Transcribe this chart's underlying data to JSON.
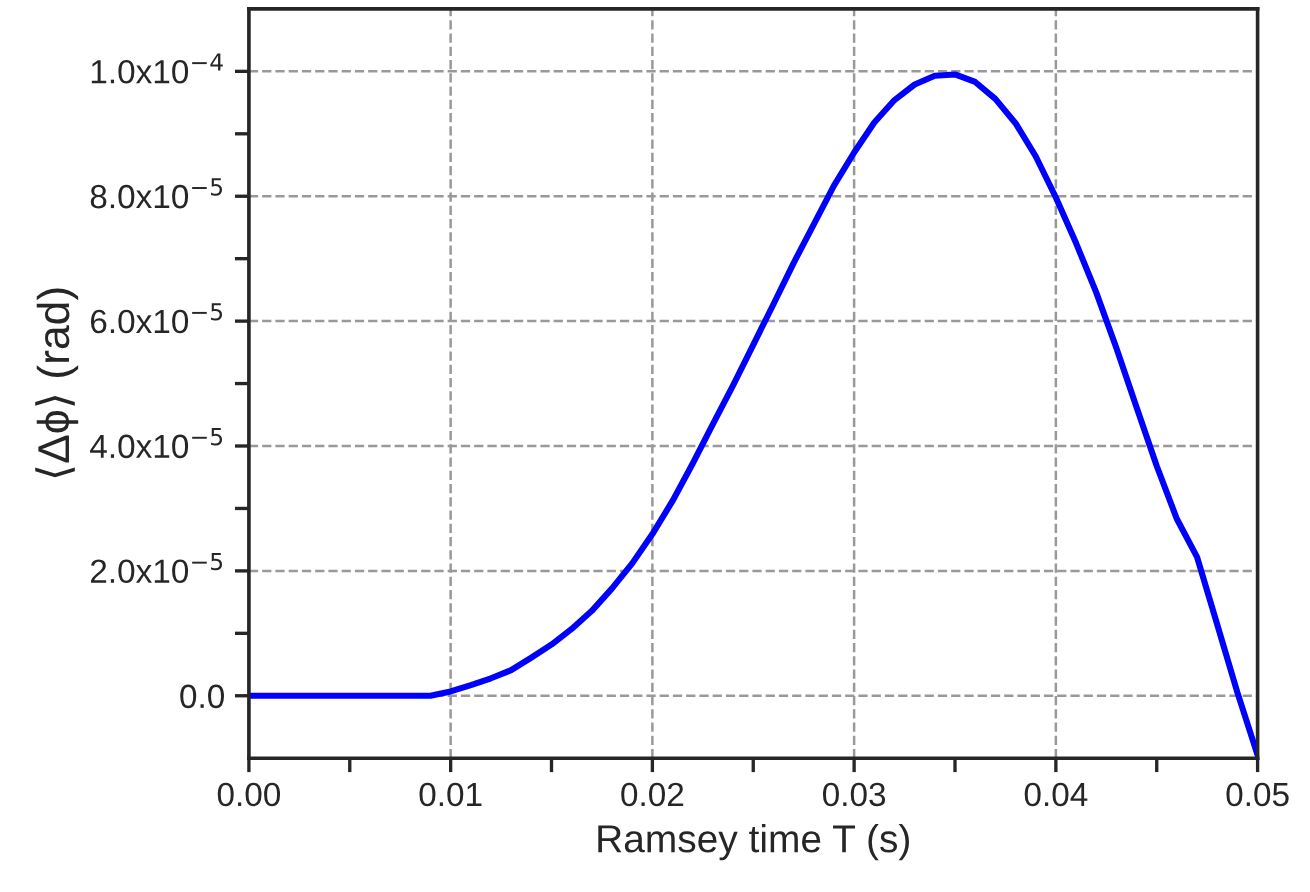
{
  "chart_data": {
    "type": "line",
    "xlabel": "Ramsey time T (s)",
    "ylabel": "⟨Δϕ⟩ (rad)",
    "x": [
      0,
      0.008,
      0.009,
      0.01,
      0.011,
      0.012,
      0.013,
      0.014,
      0.015,
      0.016,
      0.017,
      0.018,
      0.019,
      0.02,
      0.021,
      0.022,
      0.023,
      0.024,
      0.025,
      0.026,
      0.027,
      0.028,
      0.029,
      0.03,
      0.031,
      0.032,
      0.033,
      0.034,
      0.035,
      0.036,
      0.037,
      0.038,
      0.039,
      0.04,
      0.041,
      0.042,
      0.043,
      0.044,
      0.045,
      0.046,
      0.047,
      0.048,
      0.049,
      0.05
    ],
    "series": [
      {
        "color": "#0000ff",
        "values": [
          0,
          0,
          0.0,
          7e-07,
          1.7e-06,
          2.8e-06,
          4.1e-06,
          6.1e-06,
          8.2e-06,
          1.07e-05,
          1.36e-05,
          1.72e-05,
          2.12e-05,
          2.59e-05,
          3.12e-05,
          3.72e-05,
          4.35e-05,
          4.97e-05,
          5.62e-05,
          6.27e-05,
          6.93e-05,
          7.55e-05,
          8.17e-05,
          8.7e-05,
          9.18e-05,
          9.54e-05,
          9.79e-05,
          9.93e-05,
          9.95e-05,
          9.83e-05,
          9.56e-05,
          9.17e-05,
          8.64e-05,
          7.98e-05,
          7.25e-05,
          6.46e-05,
          5.57e-05,
          4.62e-05,
          3.68e-05,
          2.83e-05,
          2.22e-05,
          1.14e-05,
          5e-07,
          -9.5e-06
        ]
      }
    ],
    "xlim": [
      0,
      0.05
    ],
    "xticks": [
      {
        "value": 0,
        "label": "0.00"
      },
      {
        "value": 0.005,
        "label": null
      },
      {
        "value": 0.01,
        "label": "0.01"
      },
      {
        "value": 0.015,
        "label": null
      },
      {
        "value": 0.02,
        "label": "0.02"
      },
      {
        "value": 0.025,
        "label": null
      },
      {
        "value": 0.03,
        "label": "0.03"
      },
      {
        "value": 0.035,
        "label": null
      },
      {
        "value": 0.04,
        "label": "0.04"
      },
      {
        "value": 0.045,
        "label": null
      },
      {
        "value": 0.05,
        "label": "0.05"
      }
    ],
    "ylim": [
      -1e-05,
      0.00011
    ],
    "yticks": [
      {
        "value": 0,
        "label": "0.0"
      },
      {
        "value": 1e-05,
        "label": null
      },
      {
        "value": 2e-05,
        "label": "2.0x10$^{−5}$"
      },
      {
        "value": 3e-05,
        "label": null
      },
      {
        "value": 4e-05,
        "label": "4.0x10$^{−5}$"
      },
      {
        "value": 5e-05,
        "label": null
      },
      {
        "value": 6e-05,
        "label": "6.0x10$^{−5}$"
      },
      {
        "value": 7e-05,
        "label": null
      },
      {
        "value": 8e-05,
        "label": "8.0x10$^{−5}$"
      },
      {
        "value": 9e-05,
        "label": null
      },
      {
        "value": 0.0001,
        "label": "1.0x10$^{−4}$"
      }
    ],
    "grid": true,
    "line_style": "solid",
    "marker": "none"
  }
}
